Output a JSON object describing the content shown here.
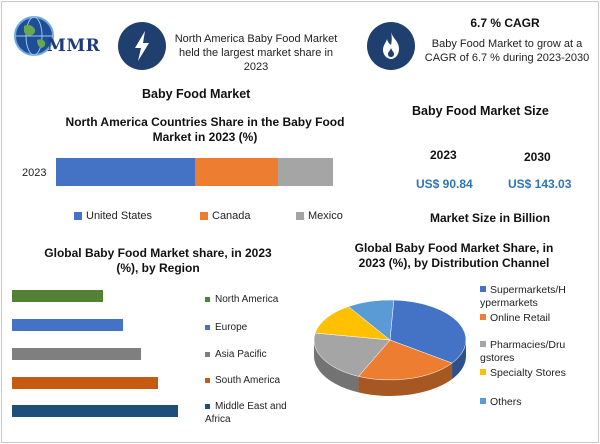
{
  "header": {
    "logo_text": "MMR",
    "box1_text": "North America Baby Food Market held the largest market share in 2023",
    "box2_title": "6.7 % CAGR",
    "box2_text": "Baby Food Market to grow at a CAGR of 6.7 % during 2023-2030"
  },
  "main_title": "Baby Food Market",
  "market_size": {
    "title": "Baby Food Market Size",
    "years": [
      "2023",
      "2030"
    ],
    "values": [
      "US$ 90.84",
      "US$ 143.03"
    ],
    "footer": "Market Size in Billion"
  },
  "icons": {
    "box1": "lightning-bolt-icon",
    "box2": "flame-icon",
    "logo": "globe-icon"
  },
  "chart_data": [
    {
      "type": "bar",
      "stacked": true,
      "orientation": "horizontal",
      "title": "North America Countries Share in the Baby Food Market in 2023 (%)",
      "categories": [
        "2023"
      ],
      "series": [
        {
          "name": "United States",
          "values": [
            50
          ],
          "color": "#4472c4"
        },
        {
          "name": "Canada",
          "values": [
            30
          ],
          "color": "#ed7d31"
        },
        {
          "name": "Mexico",
          "values": [
            20
          ],
          "color": "#a5a5a5"
        }
      ],
      "legend": "bottom"
    },
    {
      "type": "bar",
      "orientation": "horizontal",
      "title": "Global Baby Food Market share, in 2023 (%), by Region",
      "categories": [
        "North America",
        "Europe",
        "Asia Pacific",
        "South America",
        "Middle East and Africa"
      ],
      "values": [
        55,
        67,
        78,
        88,
        100
      ],
      "colors": [
        "#548235",
        "#4472c4",
        "#7f7f7f",
        "#c55a11",
        "#1f4e79"
      ],
      "legend": "right"
    },
    {
      "type": "pie",
      "title": "Global Baby Food Market Share, in 2023 (%), by Distribution Channel",
      "labels": [
        "Supermarkets/Hypermarkets",
        "Online Retail",
        "Pharmacies/Drugstores",
        "Specialty Stores",
        "Others"
      ],
      "legend_labels": [
        "Supermarkets/H ypermarkets",
        "Online Retail",
        "Pharmacies/Dru gstores",
        "Specialty Stores",
        "Others"
      ],
      "values": [
        34,
        22,
        21,
        13,
        10
      ],
      "colors": [
        "#4472c4",
        "#ed7d31",
        "#a5a5a5",
        "#ffc000",
        "#5b9bd5"
      ],
      "legend": "right"
    }
  ]
}
